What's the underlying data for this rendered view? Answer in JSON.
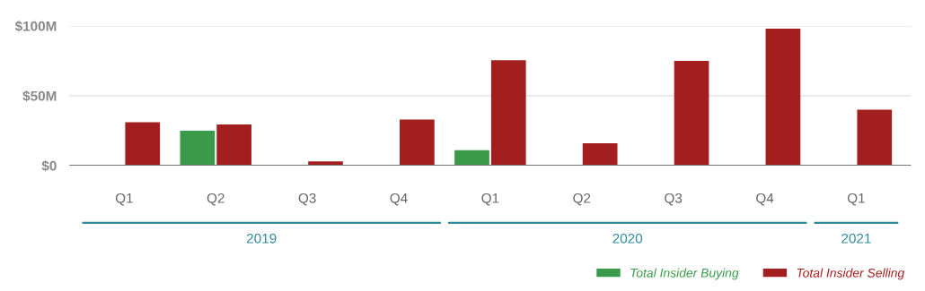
{
  "chart_data": {
    "type": "bar",
    "categories": [
      "Q1",
      "Q2",
      "Q3",
      "Q4",
      "Q1",
      "Q2",
      "Q3",
      "Q4",
      "Q1"
    ],
    "series": [
      {
        "name": "Total Insider Buying",
        "color": "#3a9a4a",
        "values": [
          0.5,
          25,
          0.5,
          0.5,
          11,
          0.5,
          0.5,
          0.5,
          0.5
        ]
      },
      {
        "name": "Total Insider Selling",
        "color": "#a31f1f",
        "values": [
          31,
          29.5,
          3,
          33,
          75.5,
          16,
          75,
          98,
          40
        ]
      }
    ],
    "ylim": [
      0,
      100
    ],
    "yticks": [
      {
        "value": 0,
        "label": "$0"
      },
      {
        "value": 50,
        "label": "$50M"
      },
      {
        "value": 100,
        "label": "$100M"
      }
    ],
    "annotations": [
      "2019",
      "2020",
      "2021"
    ],
    "grid": "y",
    "legend": "bottom right"
  }
}
